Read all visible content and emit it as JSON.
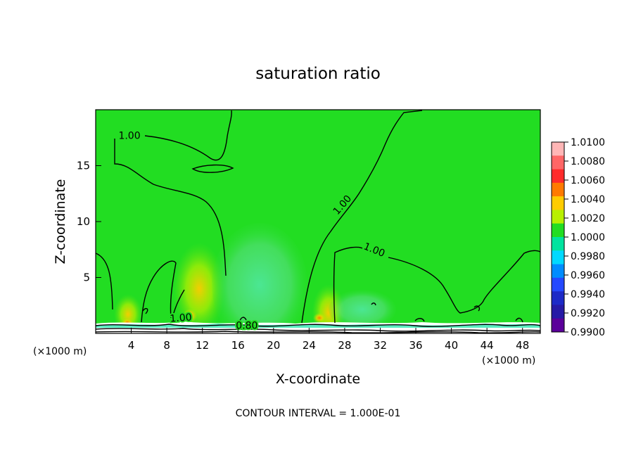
{
  "chart_data": {
    "type": "heatmap",
    "title": "saturation ratio",
    "xlabel": "X-coordinate",
    "ylabel": "Z-coordinate",
    "x_unit": "(×1000 m)",
    "y_unit": "(×1000 m)",
    "xlim": [
      0,
      50
    ],
    "ylim": [
      0,
      20
    ],
    "x_ticks": [
      4,
      8,
      12,
      16,
      20,
      24,
      28,
      32,
      36,
      40,
      44,
      48
    ],
    "y_ticks": [
      5,
      10,
      15
    ],
    "footer": "CONTOUR INTERVAL = 1.000E-01",
    "colorbar": {
      "labels": [
        "1.0100",
        "1.0080",
        "1.0060",
        "1.0040",
        "1.0020",
        "1.0000",
        "0.9980",
        "0.9960",
        "0.9940",
        "0.9920",
        "0.9900"
      ],
      "colors": [
        "#ffb6b6",
        "#ff6666",
        "#ff2b2b",
        "#ff7a00",
        "#ffcc00",
        "#b8f000",
        "#22dd22",
        "#00e39f",
        "#00d9ff",
        "#008cff",
        "#2449ff",
        "#1d2ac7",
        "#261aa6",
        "#5b009a"
      ]
    },
    "contour_labels": [
      {
        "text": "1.00",
        "x": 3.8,
        "z": 17.4
      },
      {
        "text": "1.00",
        "x": 28.0,
        "z": 11.3
      },
      {
        "text": "1.00",
        "x": 31.2,
        "z": 7.2
      },
      {
        "text": "1.00",
        "x": 9.6,
        "z": 1.1
      },
      {
        "text": "0.80",
        "x": 17.0,
        "z": 0.4
      }
    ]
  }
}
